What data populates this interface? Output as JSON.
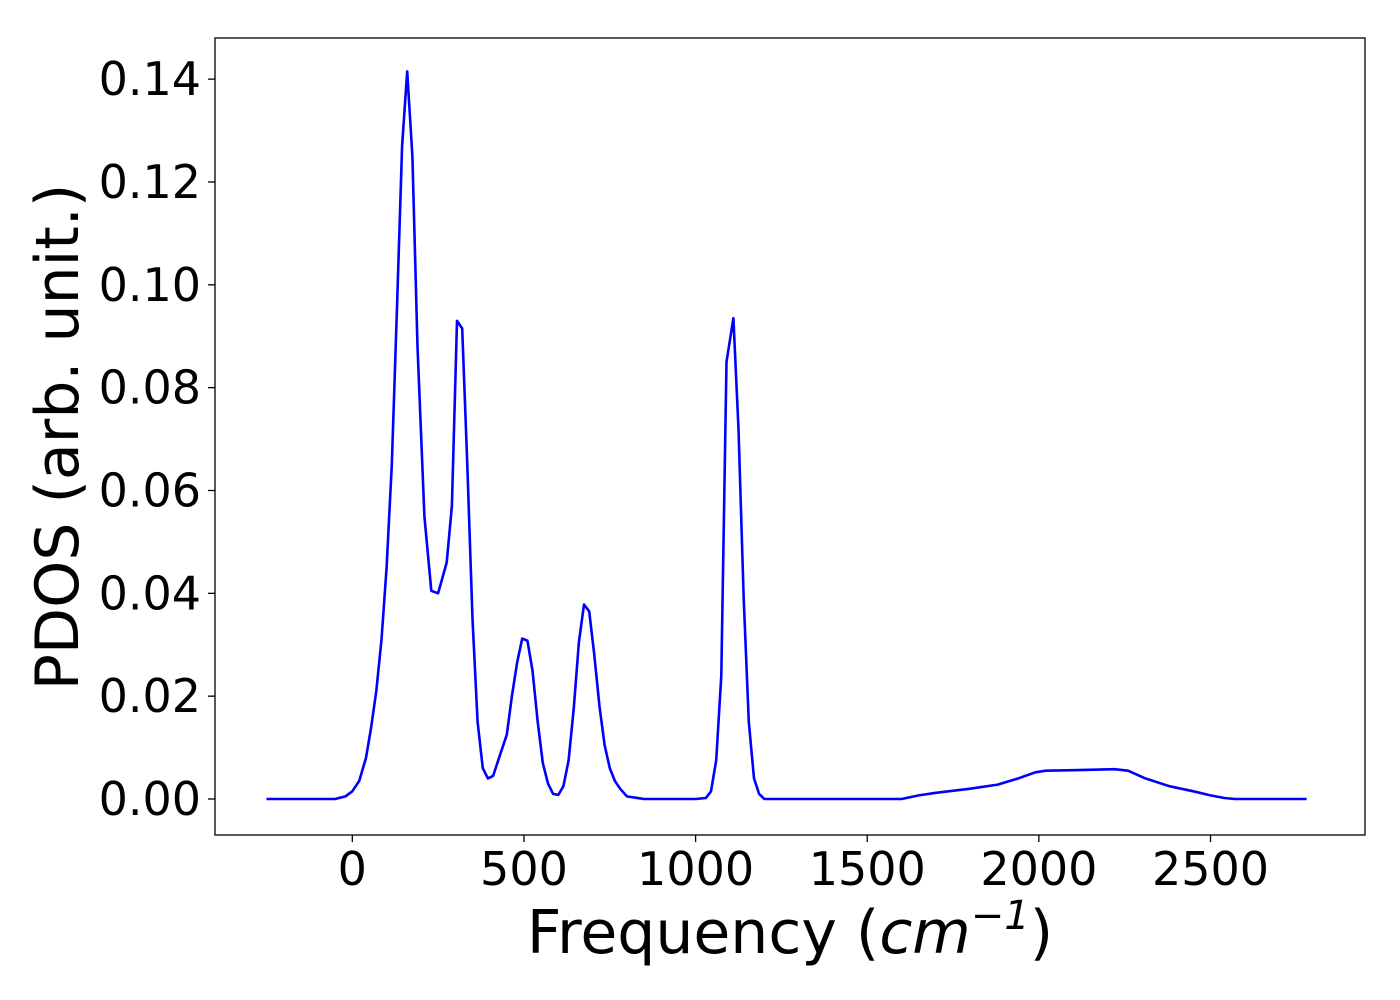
{
  "chart_data": {
    "type": "line",
    "title": "",
    "xlabel": {
      "main": "Frequency (",
      "unit_base": "cm",
      "unit_exp": "−1",
      "close": ")"
    },
    "ylabel": "PDOS (arb. unit.)",
    "xlim": [
      -400,
      2950
    ],
    "ylim": [
      -0.007,
      0.148
    ],
    "xticks": [
      0,
      500,
      1000,
      1500,
      2000,
      2500
    ],
    "xtick_labels": [
      "0",
      "500",
      "1000",
      "1500",
      "2000",
      "2500"
    ],
    "yticks": [
      0.0,
      0.02,
      0.04,
      0.06,
      0.08,
      0.1,
      0.12,
      0.14
    ],
    "ytick_labels": [
      "0.00",
      "0.02",
      "0.04",
      "0.06",
      "0.08",
      "0.10",
      "0.12",
      "0.14"
    ],
    "grid": false,
    "legend": "none",
    "series": [
      {
        "color": "#0000ff",
        "x": [
          -250,
          -50,
          -20,
          0,
          20,
          40,
          55,
          70,
          85,
          100,
          115,
          130,
          145,
          160,
          175,
          190,
          210,
          230,
          250,
          275,
          290,
          305,
          320,
          335,
          350,
          365,
          380,
          395,
          410,
          430,
          450,
          465,
          480,
          495,
          510,
          525,
          540,
          555,
          570,
          585,
          600,
          615,
          630,
          645,
          660,
          675,
          690,
          705,
          720,
          735,
          750,
          765,
          780,
          800,
          850,
          1000,
          1030,
          1045,
          1060,
          1075,
          1090,
          1110,
          1125,
          1140,
          1155,
          1170,
          1185,
          1200,
          1220,
          1600,
          1650,
          1700,
          1800,
          1880,
          1940,
          1990,
          2020,
          2100,
          2220,
          2260,
          2310,
          2380,
          2450,
          2500,
          2540,
          2570,
          2780
        ],
        "y": [
          0,
          0,
          0.0005,
          0.0015,
          0.0035,
          0.008,
          0.014,
          0.021,
          0.031,
          0.045,
          0.065,
          0.095,
          0.127,
          0.1415,
          0.125,
          0.088,
          0.055,
          0.0405,
          0.04,
          0.046,
          0.057,
          0.093,
          0.0915,
          0.065,
          0.035,
          0.015,
          0.006,
          0.004,
          0.0045,
          0.0085,
          0.0125,
          0.02,
          0.0265,
          0.0312,
          0.0308,
          0.025,
          0.015,
          0.007,
          0.003,
          0.001,
          0.0008,
          0.0025,
          0.0075,
          0.0175,
          0.0305,
          0.0378,
          0.0365,
          0.028,
          0.018,
          0.0105,
          0.006,
          0.0035,
          0.002,
          0.0005,
          0,
          0,
          0.0002,
          0.0015,
          0.0075,
          0.024,
          0.085,
          0.0935,
          0.072,
          0.039,
          0.015,
          0.004,
          0.001,
          0,
          0,
          0,
          0.0007,
          0.0012,
          0.002,
          0.0028,
          0.004,
          0.0052,
          0.0055,
          0.0056,
          0.0058,
          0.0055,
          0.004,
          0.0025,
          0.0015,
          0.0007,
          0.0002,
          0,
          0
        ]
      }
    ]
  }
}
